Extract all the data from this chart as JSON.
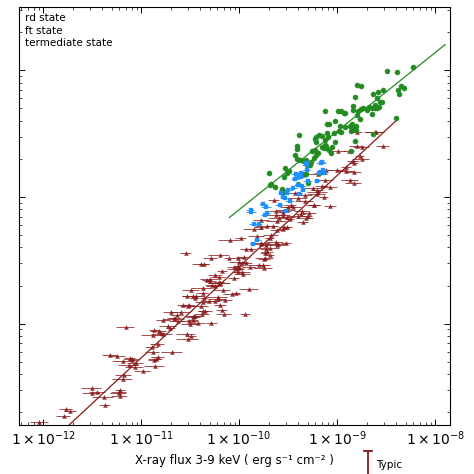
{
  "xlabel": "X-ray flux 3-9 keV ( erg s⁻¹ cm⁻² )",
  "xlim_log": [
    -12.25,
    -7.85
  ],
  "ylim_log": [
    -1.8,
    1.5
  ],
  "hard_state_color": "#8B1A1A",
  "soft_state_color": "#228B22",
  "intermediate_state_color": "#1E90FF",
  "hard_line_color": "#8B1A1A",
  "soft_line_color": "#228B22",
  "typical_error_color": "#8B1A1A",
  "legend_labels": [
    "rd state",
    "ft state",
    "termediate state"
  ],
  "background_color": "#ffffff",
  "hard_slope": 0.72,
  "hard_anchor_x": -10.0,
  "hard_anchor_y": -0.55,
  "soft_slope": 0.62,
  "soft_anchor_x": -9.0,
  "soft_anchor_y": 0.52
}
